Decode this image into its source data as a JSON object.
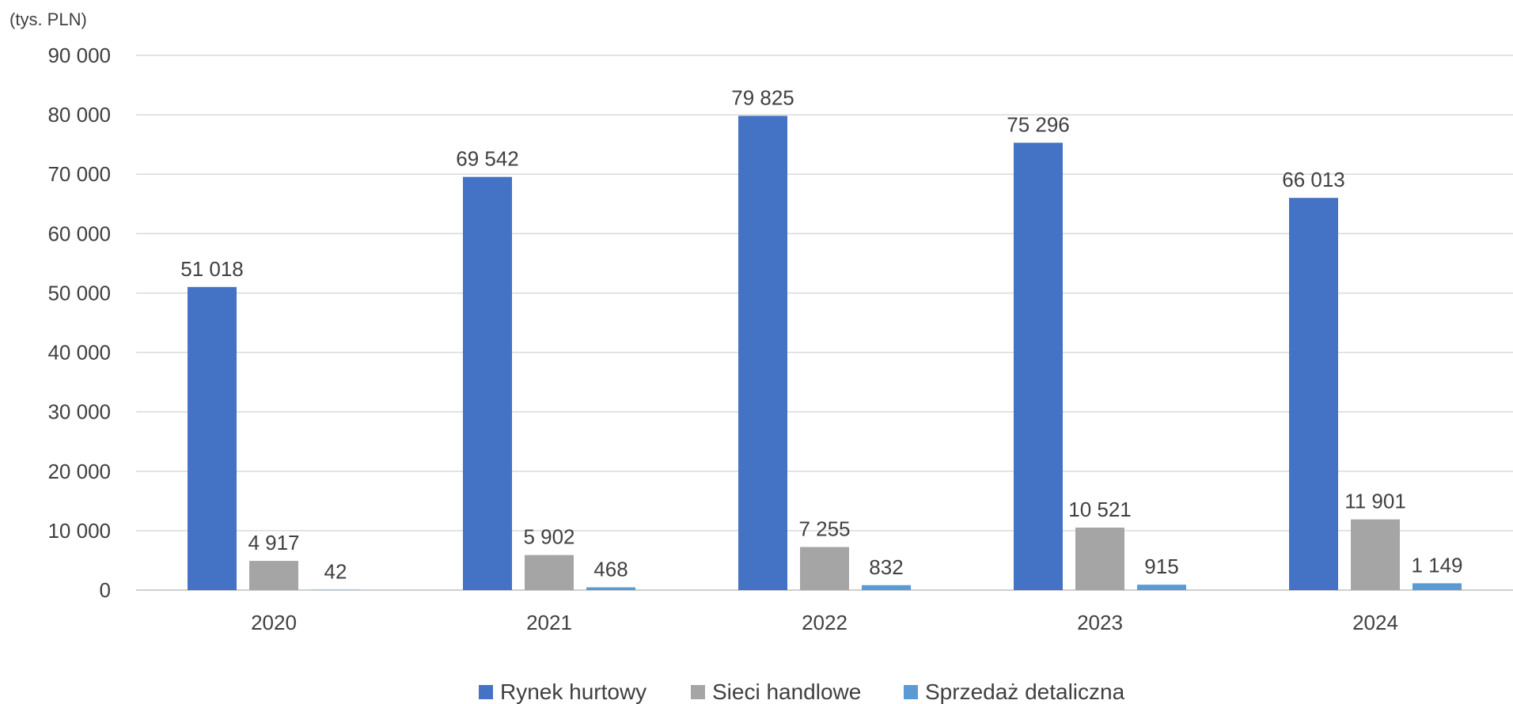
{
  "chart_data": {
    "type": "bar",
    "unit_label": "(tys. PLN)",
    "categories": [
      "2020",
      "2021",
      "2022",
      "2023",
      "2024"
    ],
    "series": [
      {
        "name": "Rynek hurtowy",
        "color": "#4472C4",
        "values": [
          51018,
          69542,
          79825,
          75296,
          66013
        ],
        "labels": [
          "51 018",
          "69 542",
          "79 825",
          "75 296",
          "66 013"
        ]
      },
      {
        "name": "Sieci handlowe",
        "color": "#A5A5A5",
        "values": [
          4917,
          5902,
          7255,
          10521,
          11901
        ],
        "labels": [
          "4 917",
          "5 902",
          "7 255",
          "10 521",
          "11 901"
        ]
      },
      {
        "name": "Sprzedaż detaliczna",
        "color": "#5B9BD5",
        "values": [
          42,
          468,
          832,
          915,
          1149
        ],
        "labels": [
          "42",
          "468",
          "832",
          "915",
          "1 149"
        ]
      }
    ],
    "ylim": [
      0,
      90000
    ],
    "yticks": [
      0,
      10000,
      20000,
      30000,
      40000,
      50000,
      60000,
      70000,
      80000,
      90000
    ],
    "ytick_labels": [
      "0",
      "10 000",
      "20 000",
      "30 000",
      "40 000",
      "50 000",
      "60 000",
      "70 000",
      "80 000",
      "90 000"
    ],
    "grid": true,
    "legend_position": "bottom"
  }
}
